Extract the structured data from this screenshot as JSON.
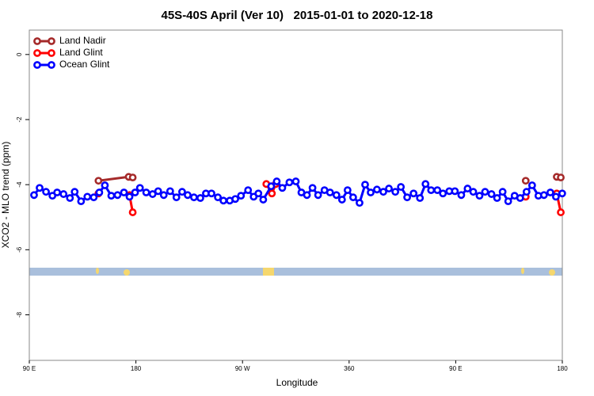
{
  "chart_data": {
    "type": "line",
    "title": "45S-40S April (Ver 10)   2015-01-01 to 2020-12-18",
    "x_label": "Longitude",
    "y_label": "XCO2 - MLO trend (ppm)",
    "xlim": [
      90,
      540
    ],
    "ylim": [
      -9.4,
      0.75
    ],
    "xticks": [
      {
        "value": 90,
        "label": "90 E"
      },
      180,
      {
        "value": 270,
        "label": "90 W"
      },
      360,
      {
        "value": 450,
        "label": "90 E"
      },
      {
        "value": 540,
        "label": "180"
      }
    ],
    "yticks": [
      0,
      -2,
      -4,
      -6,
      -8
    ],
    "legend": "top-left",
    "series": [
      {
        "name": "Land Nadir",
        "color": "#a52a2a",
        "x": [
          148.4,
          173.9,
          177.3,
          null,
          509.1,
          null,
          535.3,
          538.7
        ],
        "values": [
          -3.88,
          -3.76,
          -3.78,
          null,
          -3.88,
          null,
          -3.76,
          -3.78
        ]
      },
      {
        "name": "Land Glint",
        "color": "#ff0000",
        "x": [
          148.4,
          null,
          174.6,
          177.3,
          null,
          290.1,
          294.8,
          298.1,
          null,
          509.1,
          null,
          535.3,
          538.7
        ],
        "values": [
          -4.27,
          null,
          -4.32,
          -4.85,
          null,
          -3.98,
          -4.27,
          -3.98,
          null,
          -4.37,
          null,
          -4.27,
          -4.85
        ]
      },
      {
        "name": "Ocean Glint",
        "color": "#0000ff",
        "x": [
          94.0,
          98.7,
          104.1,
          109.5,
          113.5,
          118.9,
          124.3,
          128.3,
          133.7,
          139.0,
          144.4,
          149.1,
          153.8,
          159.2,
          164.5,
          169.9,
          174.6,
          179.3,
          183.4,
          188.7,
          194.1,
          198.8,
          203.5,
          208.9,
          214.2,
          219.0,
          223.7,
          229.0,
          234.4,
          239.1,
          243.8,
          249.2,
          253.9,
          259.2,
          263.9,
          268.7,
          274.7,
          279.4,
          283.4,
          287.5,
          294.2,
          298.9,
          303.6,
          309.6,
          315.0,
          319.7,
          324.4,
          329.1,
          333.8,
          339.2,
          343.9,
          349.3,
          354.0,
          358.7,
          363.4,
          368.8,
          373.5,
          378.2,
          383.5,
          388.9,
          393.6,
          399.0,
          403.7,
          409.0,
          414.4,
          419.8,
          424.5,
          429.2,
          434.5,
          439.2,
          444.6,
          449.3,
          454.7,
          460.0,
          464.8,
          470.1,
          474.8,
          480.2,
          484.9,
          489.6,
          494.3,
          499.7,
          504.4,
          509.8,
          514.5,
          519.8,
          524.5,
          529.9,
          534.6,
          539.9
        ],
        "values": [
          -4.32,
          -4.1,
          -4.22,
          -4.34,
          -4.24,
          -4.29,
          -4.41,
          -4.22,
          -4.51,
          -4.37,
          -4.39,
          -4.24,
          -4.02,
          -4.34,
          -4.32,
          -4.24,
          -4.37,
          -4.24,
          -4.1,
          -4.24,
          -4.29,
          -4.2,
          -4.32,
          -4.2,
          -4.39,
          -4.22,
          -4.32,
          -4.39,
          -4.41,
          -4.27,
          -4.27,
          -4.39,
          -4.49,
          -4.49,
          -4.44,
          -4.34,
          -4.17,
          -4.37,
          -4.27,
          -4.46,
          -4.05,
          -3.9,
          -4.1,
          -3.93,
          -3.9,
          -4.24,
          -4.32,
          -4.1,
          -4.32,
          -4.17,
          -4.24,
          -4.32,
          -4.46,
          -4.17,
          -4.39,
          -4.56,
          -4.0,
          -4.24,
          -4.15,
          -4.22,
          -4.12,
          -4.22,
          -4.07,
          -4.39,
          -4.27,
          -4.41,
          -3.98,
          -4.17,
          -4.17,
          -4.27,
          -4.2,
          -4.2,
          -4.32,
          -4.12,
          -4.22,
          -4.34,
          -4.22,
          -4.29,
          -4.41,
          -4.22,
          -4.51,
          -4.34,
          -4.41,
          -4.22,
          -4.02,
          -4.34,
          -4.32,
          -4.24,
          -4.37,
          -4.27
        ]
      }
    ]
  }
}
